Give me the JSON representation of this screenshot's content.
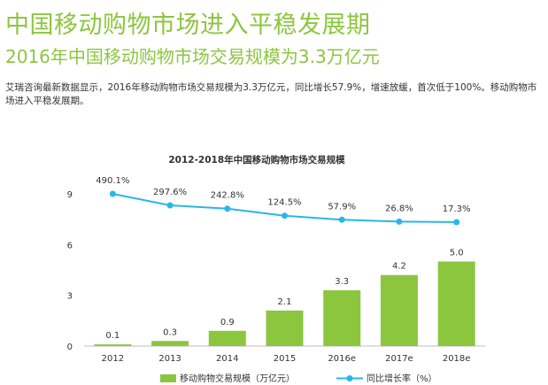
{
  "header": {
    "title": "中国移动购物市场进入平稳发展期",
    "subtitle": "2016年中国移动购物市场交易规模为3.3万亿元",
    "description": "艾瑞咨询最新数据显示，2016年移动购物市场交易规模为3.3万亿元，同比增长57.9%，增速放缓，首次低于100%。移动购物市场进入平稳发展期。"
  },
  "chart_data": {
    "type": "bar",
    "title": "2012-2018年中国移动购物市场交易规模",
    "categories": [
      "2012",
      "2013",
      "2014",
      "2015",
      "2016e",
      "2017e",
      "2018e"
    ],
    "ylim": [
      0,
      9
    ],
    "yticks": [
      "0",
      "3",
      "6",
      "9"
    ],
    "grid": false,
    "legend_position": "bottom",
    "series": [
      {
        "name": "移动购物交易规模（万亿元）",
        "type": "bar",
        "color": "#8cc63f",
        "values": [
          0.1,
          0.3,
          0.9,
          2.1,
          3.3,
          4.2,
          5.0
        ],
        "labels": [
          "0.1",
          "0.3",
          "0.9",
          "2.1",
          "3.3",
          "4.2",
          "5.0"
        ]
      },
      {
        "name": "同比增长率（%）",
        "type": "line",
        "color": "#29b6e8",
        "values": [
          490.1,
          297.6,
          242.8,
          124.5,
          57.9,
          26.8,
          17.3
        ],
        "labels": [
          "490.1%",
          "297.6%",
          "242.8%",
          "124.5%",
          "57.9%",
          "26.8%",
          "17.3%"
        ]
      }
    ]
  }
}
